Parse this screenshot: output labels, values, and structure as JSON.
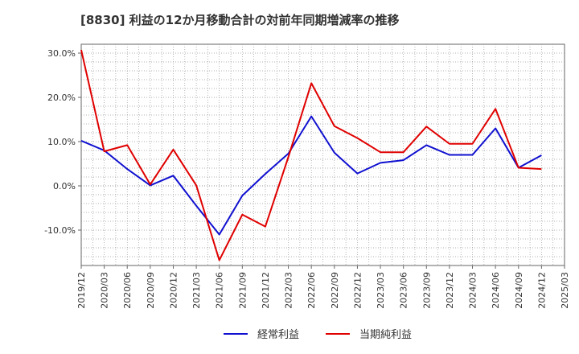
{
  "chart_data": {
    "type": "line",
    "title": "[8830]  利益の12か月移動合計の対前年同期増減率の推移",
    "xlabel": "",
    "ylabel": "",
    "ylim": [
      -18,
      32
    ],
    "yticks": [
      30,
      20,
      10,
      0,
      -10
    ],
    "ytick_labels": [
      "30.0%",
      "20.0%",
      "10.0%",
      "0.0%",
      "-10.0%"
    ],
    "grid": true,
    "legend_position": "bottom-center",
    "categories": [
      "2019/12",
      "2020/03",
      "2020/06",
      "2020/09",
      "2020/12",
      "2021/03",
      "2021/06",
      "2021/09",
      "2021/12",
      "2022/03",
      "2022/06",
      "2022/09",
      "2022/12",
      "2023/03",
      "2023/06",
      "2023/09",
      "2023/12",
      "2024/03",
      "2024/06",
      "2024/09",
      "2024/12",
      "2025/03"
    ],
    "series": [
      {
        "name": "経常利益",
        "color": "#1010d0",
        "values": [
          10.2,
          8.0,
          3.8,
          0.1,
          2.3,
          -4.5,
          -11.0,
          -2.2,
          2.7,
          7.3,
          15.7,
          7.5,
          2.8,
          5.2,
          5.8,
          9.2,
          7.0,
          7.0,
          13.0,
          4.1,
          6.9,
          null
        ]
      },
      {
        "name": "当期純利益",
        "color": "#e00000",
        "values": [
          30.7,
          7.8,
          9.2,
          0.3,
          8.2,
          0.1,
          -16.8,
          -6.5,
          -9.2,
          6.5,
          23.2,
          13.5,
          10.8,
          7.6,
          7.6,
          13.4,
          9.5,
          9.5,
          17.4,
          4.1,
          3.8,
          null
        ]
      }
    ]
  }
}
